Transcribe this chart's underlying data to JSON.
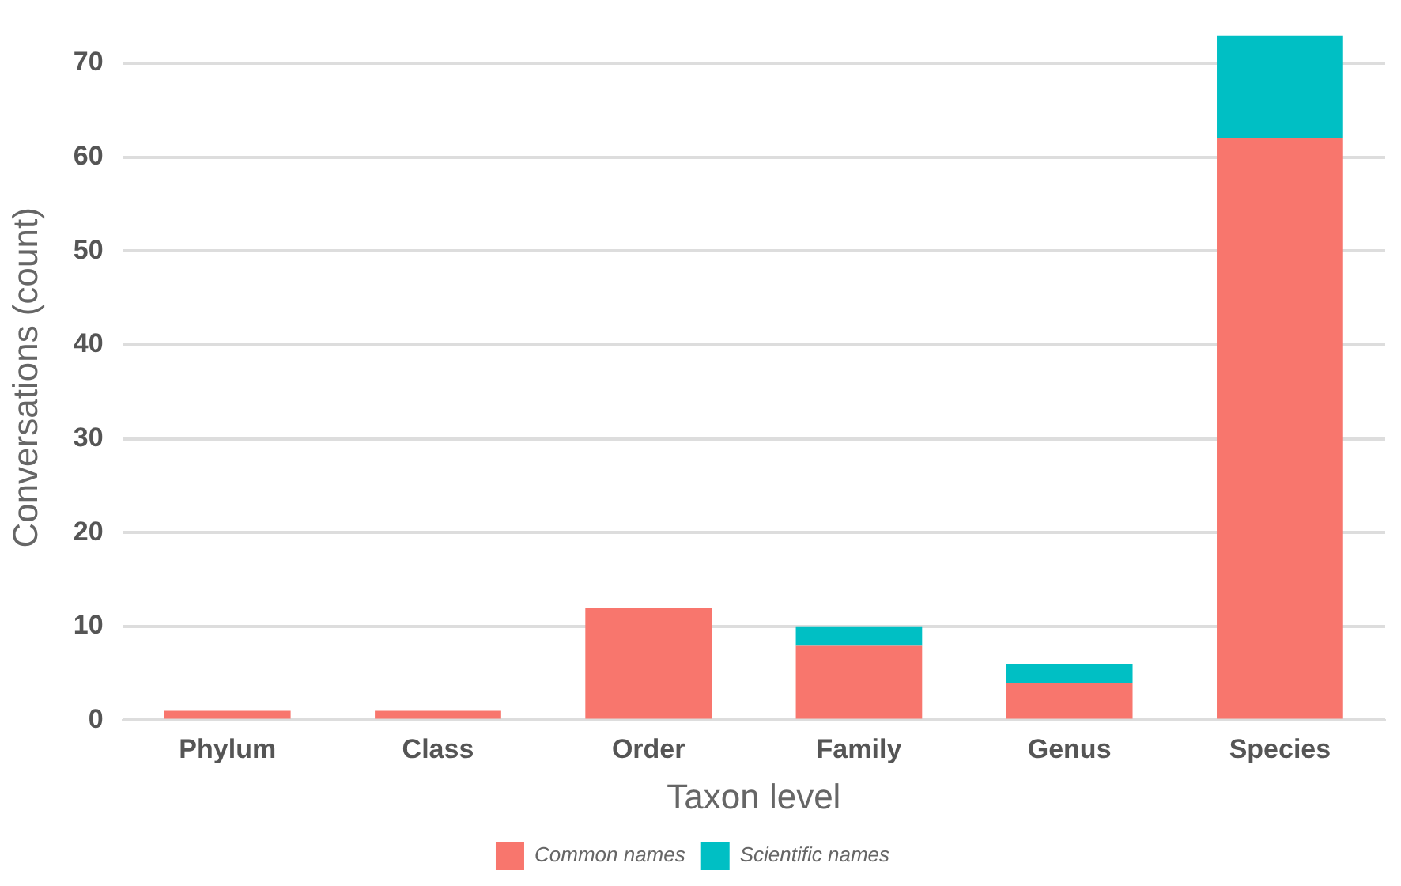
{
  "chart_data": {
    "type": "bar",
    "xlabel": "Taxon level",
    "ylabel": "Conversations (count)",
    "categories": [
      "Phylum",
      "Class",
      "Order",
      "Family",
      "Genus",
      "Species"
    ],
    "series": [
      {
        "name": "Common names",
        "color": "#f8766d",
        "values": [
          1,
          1,
          12,
          8,
          4,
          62
        ]
      },
      {
        "name": "Scientific names",
        "color": "#00bfc4",
        "values": [
          0,
          0,
          0,
          2,
          2,
          11
        ]
      }
    ],
    "stacked": true,
    "ylim": [
      0,
      73
    ],
    "yticks": [
      0,
      10,
      20,
      30,
      40,
      50,
      60,
      70
    ],
    "grid": "y",
    "legend": "bottom"
  }
}
